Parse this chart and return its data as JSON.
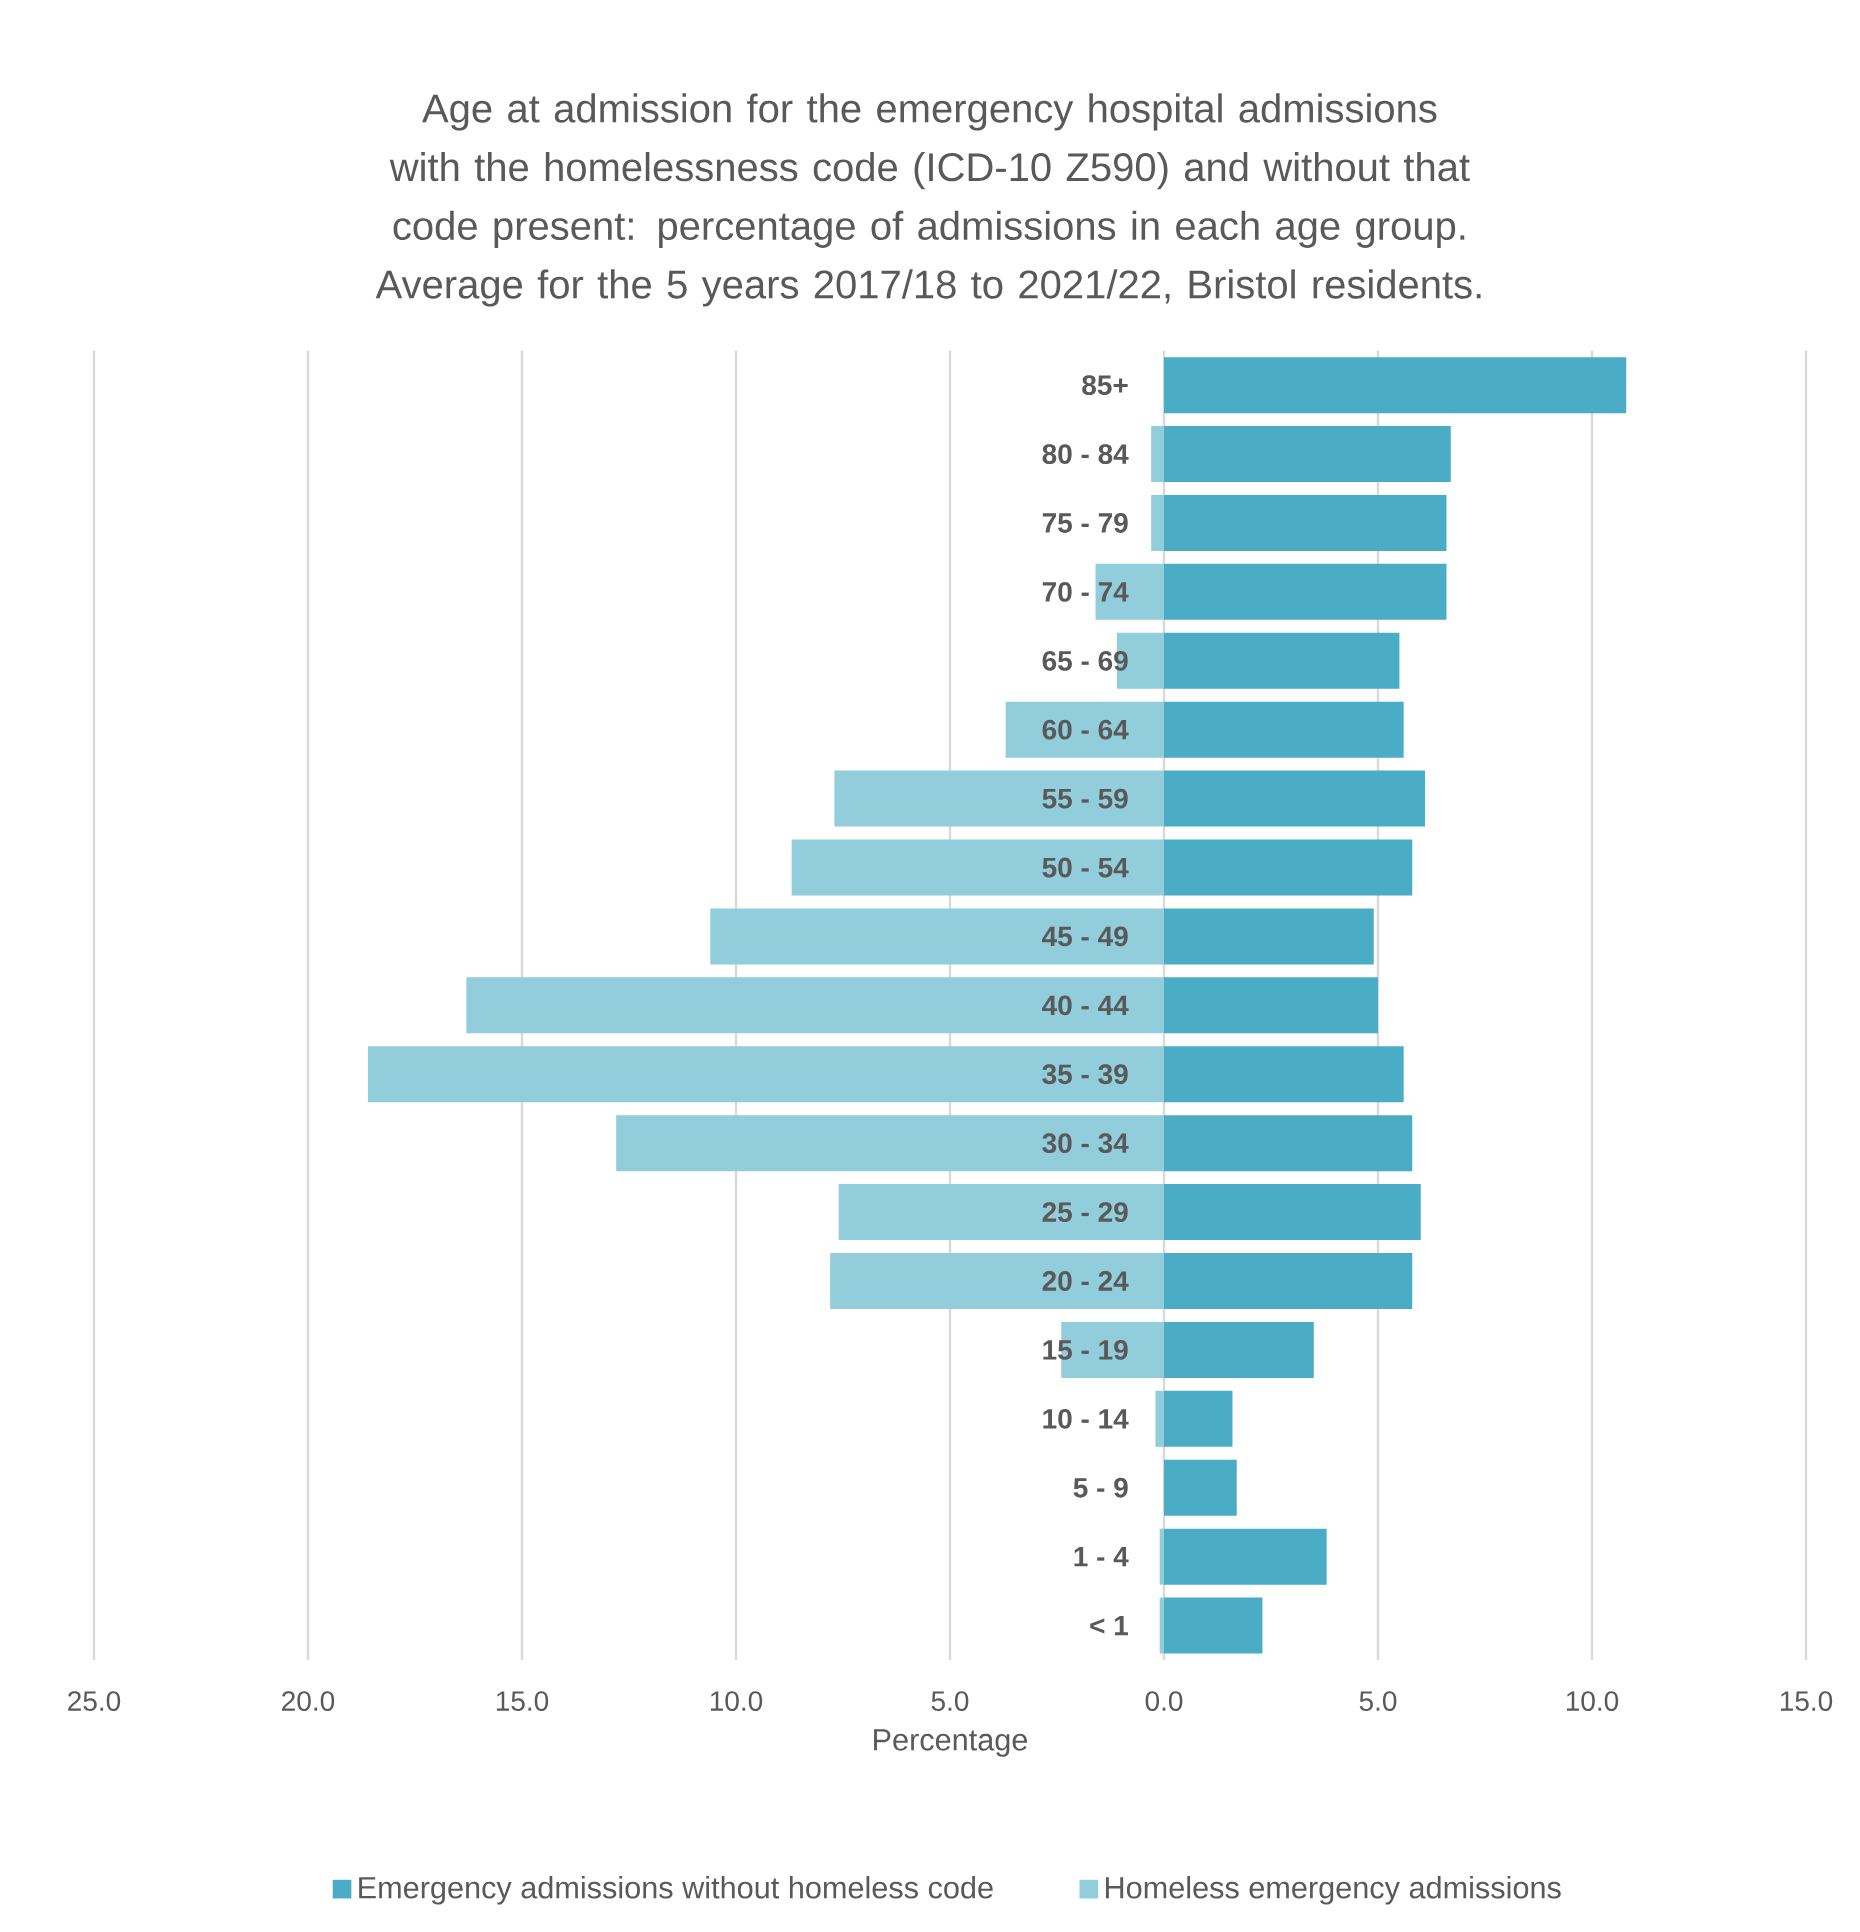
{
  "chart_data": {
    "type": "bar",
    "orientation": "horizontal",
    "title": "Age at admission for the emergency hospital admissions with the homelessness code (ICD-10 Z590) and without that code present: percentage of admissions in each age group. Average for the 5 years 2017/18 to 2021/22, Bristol residents.",
    "xlabel": "Percentage",
    "categories": [
      "85+",
      "80 - 84",
      "75 - 79",
      "70 - 74",
      "65 - 69",
      "60 - 64",
      "55 - 59",
      "50 - 54",
      "45 - 49",
      "40 - 44",
      "35 - 39",
      "30 - 34",
      "25 - 29",
      "20 - 24",
      "15 - 19",
      "10 - 14",
      "5 - 9",
      "1 - 4",
      "< 1"
    ],
    "series": [
      {
        "name": "Emergency admissions without homeless code",
        "color": "#4bacc6",
        "values": [
          10.8,
          6.7,
          6.6,
          6.6,
          5.5,
          5.6,
          6.1,
          5.8,
          4.9,
          5.0,
          5.6,
          5.8,
          6.0,
          5.8,
          3.5,
          1.6,
          1.7,
          3.8,
          2.3
        ]
      },
      {
        "name": "Homeless emergency admissions",
        "color": "#92cddc",
        "values": [
          0,
          -0.3,
          -0.3,
          -1.6,
          -1.1,
          -3.7,
          -7.7,
          -8.7,
          -10.6,
          -16.3,
          -18.6,
          -12.8,
          -7.6,
          -7.8,
          -2.4,
          -0.2,
          0,
          -0.1,
          -0.1
        ]
      }
    ],
    "xlim": [
      -25,
      15
    ],
    "xticks": [
      {
        "value": -25,
        "label": "25.0"
      },
      {
        "value": -20,
        "label": "20.0"
      },
      {
        "value": -15,
        "label": "15.0"
      },
      {
        "value": -10,
        "label": "10.0"
      },
      {
        "value": -5,
        "label": "5.0"
      },
      {
        "value": 0,
        "label": "0.0"
      },
      {
        "value": 5,
        "label": "5.0"
      },
      {
        "value": 10,
        "label": "10.0"
      },
      {
        "value": 15,
        "label": "15.0"
      }
    ],
    "stacked": true,
    "grid": "x",
    "legend": "bottom"
  }
}
